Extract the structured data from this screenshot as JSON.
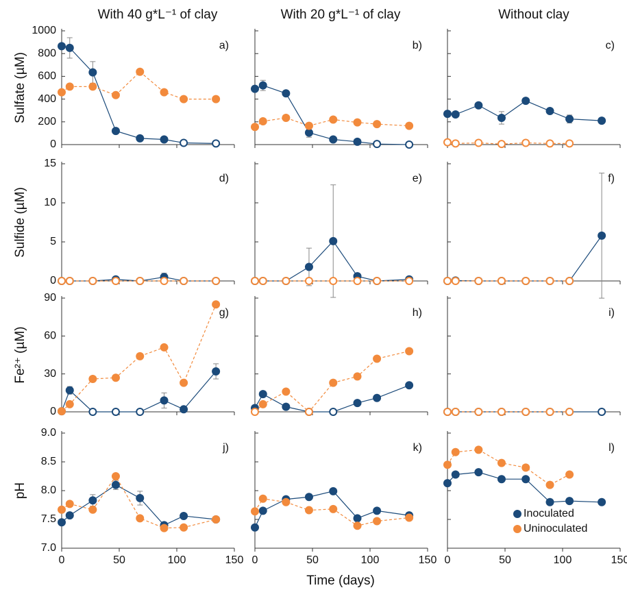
{
  "column_titles": [
    "With 40 g*L⁻¹ of clay",
    "With 20 g*L⁻¹  of clay",
    "Without clay"
  ],
  "x_label": "Time (days)",
  "chart_data": [
    {
      "type": "line",
      "label": "a)",
      "ylabel": "Sulfate (µM)",
      "x": [
        0,
        7,
        27,
        47,
        68,
        89,
        106,
        134
      ],
      "xlim": [
        0,
        150
      ],
      "xticks": [
        0,
        50,
        100,
        150
      ],
      "xtick_labels": false,
      "ylim": [
        0,
        1000
      ],
      "yticks": [
        0,
        200,
        400,
        600,
        800,
        1000
      ],
      "series": [
        {
          "name": "Inoculated",
          "color": "#1b4a7a",
          "values": [
            865,
            850,
            635,
            120,
            55,
            45,
            15,
            10
          ],
          "errors": [
            null,
            90,
            95,
            null,
            null,
            null,
            null,
            null
          ],
          "hollow": [
            false,
            false,
            false,
            false,
            false,
            false,
            true,
            true
          ]
        },
        {
          "name": "Uninoculated",
          "color": "#f28a3c",
          "dashed": true,
          "values": [
            460,
            510,
            510,
            435,
            640,
            460,
            400,
            400
          ]
        }
      ]
    },
    {
      "type": "line",
      "label": "b)",
      "x": [
        0,
        7,
        27,
        47,
        68,
        89,
        106,
        134
      ],
      "xlim": [
        0,
        150
      ],
      "xticks": [
        0,
        50,
        100,
        150
      ],
      "xtick_labels": false,
      "ytick_labels": false,
      "ylim": [
        0,
        1000
      ],
      "yticks": [
        0,
        200,
        400,
        600,
        800,
        1000
      ],
      "series": [
        {
          "name": "Inoculated",
          "color": "#1b4a7a",
          "values": [
            490,
            520,
            450,
            105,
            45,
            25,
            5,
            0
          ],
          "errors": [
            null,
            45,
            null,
            40,
            null,
            null,
            null,
            null
          ],
          "hollow": [
            false,
            false,
            false,
            false,
            false,
            false,
            true,
            true
          ]
        },
        {
          "name": "Uninoculated",
          "color": "#f28a3c",
          "dashed": true,
          "values": [
            155,
            205,
            235,
            165,
            220,
            195,
            180,
            165
          ]
        }
      ]
    },
    {
      "type": "line",
      "label": "c)",
      "x": [
        0,
        7,
        27,
        47,
        68,
        89,
        106,
        134
      ],
      "xlim": [
        0,
        150
      ],
      "xticks": [
        0,
        50,
        100,
        150
      ],
      "xtick_labels": false,
      "ytick_labels": false,
      "ylim": [
        0,
        1000
      ],
      "yticks": [
        0,
        200,
        400,
        600,
        800,
        1000
      ],
      "series": [
        {
          "name": "Inoculated",
          "color": "#1b4a7a",
          "values": [
            270,
            265,
            345,
            235,
            385,
            295,
            225,
            210
          ],
          "errors": [
            null,
            null,
            null,
            55,
            null,
            null,
            35,
            null
          ]
        },
        {
          "name": "Uninoculated",
          "color": "#f28a3c",
          "dashed": true,
          "values": [
            20,
            10,
            15,
            5,
            15,
            10,
            10,
            null
          ],
          "hollow": true
        }
      ]
    },
    {
      "type": "line",
      "label": "d)",
      "ylabel": "Sulfide (µM)",
      "x": [
        0,
        7,
        27,
        47,
        68,
        89,
        106,
        134
      ],
      "xlim": [
        0,
        150
      ],
      "xticks": [
        0,
        50,
        100,
        150
      ],
      "xtick_labels": false,
      "ylim": [
        0,
        15
      ],
      "yticks": [
        0,
        5,
        10,
        15
      ],
      "series": [
        {
          "name": "Inoculated",
          "color": "#1b4a7a",
          "values": [
            0,
            0,
            0,
            0.2,
            0,
            0.5,
            0,
            0
          ],
          "errors": [
            null,
            null,
            null,
            null,
            null,
            0.5,
            null,
            null
          ],
          "hollow": [
            true,
            true,
            true,
            false,
            true,
            false,
            true,
            true
          ]
        },
        {
          "name": "Uninoculated",
          "color": "#f28a3c",
          "dashed": true,
          "values": [
            0,
            0,
            0,
            0,
            0,
            0,
            0,
            0
          ],
          "hollow": true
        }
      ]
    },
    {
      "type": "line",
      "label": "e)",
      "x": [
        0,
        7,
        27,
        47,
        68,
        89,
        106,
        134
      ],
      "xlim": [
        0,
        150
      ],
      "xticks": [
        0,
        50,
        100,
        150
      ],
      "xtick_labels": false,
      "ytick_labels": false,
      "ylim": [
        0,
        15
      ],
      "yticks": [
        0,
        5,
        10,
        15
      ],
      "series": [
        {
          "name": "Inoculated",
          "color": "#1b4a7a",
          "values": [
            0,
            0,
            0,
            1.8,
            5.1,
            0.6,
            0,
            0.2
          ],
          "errors": [
            null,
            null,
            null,
            2.4,
            7.2,
            null,
            null,
            null
          ],
          "hollow": [
            true,
            true,
            true,
            false,
            false,
            false,
            true,
            false
          ]
        },
        {
          "name": "Uninoculated",
          "color": "#f28a3c",
          "dashed": true,
          "values": [
            0,
            0,
            0,
            0,
            0,
            0,
            0,
            0
          ],
          "hollow": true
        }
      ]
    },
    {
      "type": "line",
      "label": "f)",
      "x": [
        0,
        7,
        27,
        47,
        68,
        89,
        106,
        134
      ],
      "xlim": [
        0,
        150
      ],
      "xticks": [
        0,
        50,
        100,
        150
      ],
      "xtick_labels": false,
      "ytick_labels": false,
      "ylim": [
        0,
        15
      ],
      "yticks": [
        0,
        5,
        10,
        15
      ],
      "series": [
        {
          "name": "Inoculated",
          "color": "#1b4a7a",
          "values": [
            0,
            0.05,
            0,
            0,
            0,
            0,
            0,
            5.8
          ],
          "errors": [
            null,
            null,
            null,
            null,
            null,
            null,
            null,
            8
          ]
        },
        {
          "name": "Uninoculated",
          "color": "#f28a3c",
          "dashed": true,
          "values": [
            0,
            0,
            0,
            0,
            0,
            0,
            0,
            null
          ],
          "hollow": true
        }
      ]
    },
    {
      "type": "line",
      "label": "g)",
      "ylabel": "Fe²⁺ (µM)",
      "x": [
        0,
        7,
        27,
        47,
        68,
        89,
        106,
        134
      ],
      "xlim": [
        0,
        150
      ],
      "xticks": [
        0,
        50,
        100,
        150
      ],
      "xtick_labels": false,
      "ylim": [
        0,
        90
      ],
      "yticks": [
        0,
        30,
        60,
        90
      ],
      "series": [
        {
          "name": "Inoculated",
          "color": "#1b4a7a",
          "values": [
            0.5,
            17,
            0,
            0,
            0,
            9,
            2,
            32
          ],
          "errors": [
            null,
            3,
            null,
            null,
            null,
            6,
            null,
            6
          ],
          "hollow": [
            false,
            false,
            true,
            true,
            true,
            false,
            false,
            false
          ]
        },
        {
          "name": "Uninoculated",
          "color": "#f28a3c",
          "dashed": true,
          "values": [
            0.5,
            6,
            26,
            27,
            44,
            51,
            23,
            85
          ]
        }
      ]
    },
    {
      "type": "line",
      "label": "h)",
      "x": [
        0,
        7,
        27,
        47,
        68,
        89,
        106,
        134
      ],
      "xlim": [
        0,
        150
      ],
      "xticks": [
        0,
        50,
        100,
        150
      ],
      "xtick_labels": false,
      "ytick_labels": false,
      "ylim": [
        0,
        90
      ],
      "yticks": [
        0,
        30,
        60,
        90
      ],
      "series": [
        {
          "name": "Inoculated",
          "color": "#1b4a7a",
          "values": [
            3,
            14,
            4,
            0,
            0,
            7,
            11,
            21
          ],
          "hollow": [
            false,
            false,
            false,
            true,
            true,
            false,
            false,
            false
          ]
        },
        {
          "name": "Uninoculated",
          "color": "#f28a3c",
          "dashed": true,
          "values": [
            0,
            6,
            16,
            0,
            23,
            28,
            42,
            48
          ],
          "hollow": [
            true,
            false,
            false,
            true,
            false,
            false,
            false,
            false
          ]
        }
      ]
    },
    {
      "type": "line",
      "label": "i)",
      "x": [
        0,
        7,
        27,
        47,
        68,
        89,
        106,
        134
      ],
      "xlim": [
        0,
        150
      ],
      "xticks": [
        0,
        50,
        100,
        150
      ],
      "xtick_labels": false,
      "ytick_labels": false,
      "ylim": [
        0,
        90
      ],
      "yticks": [
        0,
        30,
        60,
        90
      ],
      "series": [
        {
          "name": "Inoculated",
          "color": "#1b4a7a",
          "values": [
            0,
            0,
            0,
            0,
            0,
            0,
            0,
            0
          ],
          "hollow": true
        },
        {
          "name": "Uninoculated",
          "color": "#f28a3c",
          "dashed": true,
          "values": [
            0,
            0,
            0,
            0,
            0,
            0,
            0,
            null
          ],
          "hollow": true
        }
      ]
    },
    {
      "type": "line",
      "label": "j)",
      "ylabel": "pH",
      "x": [
        0,
        7,
        27,
        47,
        68,
        89,
        106,
        134
      ],
      "xlim": [
        0,
        150
      ],
      "xticks": [
        0,
        50,
        100,
        150
      ],
      "ylim": [
        7,
        9
      ],
      "yticks": [
        {
          "value": 7,
          "label": "7.0"
        },
        7.5,
        {
          "value": 8,
          "label": "8.0"
        },
        8.5,
        {
          "value": 9,
          "label": "9.0"
        }
      ],
      "series": [
        {
          "name": "Inoculated",
          "color": "#1b4a7a",
          "values": [
            7.45,
            7.57,
            7.83,
            8.1,
            7.87,
            7.4,
            7.56,
            7.5
          ],
          "errors": [
            null,
            null,
            0.1,
            0.08,
            0.12,
            null,
            null,
            null
          ]
        },
        {
          "name": "Uninoculated",
          "color": "#f28a3c",
          "dashed": true,
          "values": [
            7.67,
            7.77,
            7.67,
            8.25,
            7.52,
            7.35,
            7.36,
            7.5
          ]
        }
      ]
    },
    {
      "type": "line",
      "label": "k)",
      "x": [
        0,
        7,
        27,
        47,
        68,
        89,
        106,
        134
      ],
      "xlim": [
        0,
        150
      ],
      "xticks": [
        0,
        50,
        100,
        150
      ],
      "ytick_labels": false,
      "ylim": [
        7,
        9
      ],
      "yticks": [
        7,
        7.5,
        8,
        8.5,
        9
      ],
      "series": [
        {
          "name": "Inoculated",
          "color": "#1b4a7a",
          "values": [
            7.36,
            7.65,
            7.85,
            7.89,
            7.99,
            7.52,
            7.65,
            7.57
          ]
        },
        {
          "name": "Uninoculated",
          "color": "#f28a3c",
          "dashed": true,
          "values": [
            7.64,
            7.86,
            7.8,
            7.66,
            7.68,
            7.39,
            7.47,
            7.53
          ]
        }
      ]
    },
    {
      "type": "line",
      "label": "l)",
      "legend": "lower right",
      "x": [
        0,
        7,
        27,
        47,
        68,
        89,
        106,
        134
      ],
      "xlim": [
        0,
        150
      ],
      "xticks": [
        0,
        50,
        100,
        150
      ],
      "ytick_labels": false,
      "ylim": [
        7,
        9
      ],
      "yticks": [
        7,
        7.5,
        8,
        8.5,
        9
      ],
      "series": [
        {
          "name": "Inoculated",
          "color": "#1b4a7a",
          "values": [
            8.13,
            8.28,
            8.32,
            8.2,
            8.2,
            7.8,
            7.82,
            7.8
          ]
        },
        {
          "name": "Uninoculated",
          "color": "#f28a3c",
          "dashed": true,
          "values": [
            8.45,
            8.67,
            8.71,
            8.48,
            8.4,
            8.1,
            8.28,
            null
          ]
        }
      ]
    }
  ]
}
